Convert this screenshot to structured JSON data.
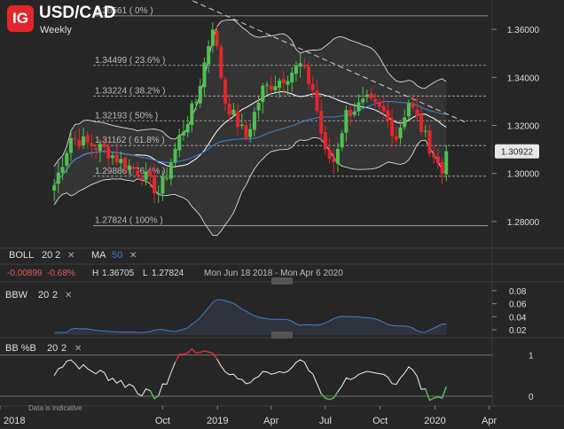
{
  "header": {
    "logo": "IG",
    "title": "USD/CAD",
    "subtitle": "Weekly"
  },
  "colors": {
    "bg": "#262626",
    "up": "#4fc14f",
    "down": "#e3262b",
    "boll": "#d9d9d9",
    "ma": "#3c7fc9",
    "band_fill": "#3a3a3a",
    "grid": "#3a3a3a"
  },
  "chart_data": {
    "type": "candlestick",
    "ylim": [
      1.27,
      1.37
    ],
    "yticks": [
      1.28,
      1.3,
      1.32,
      1.34,
      1.36
    ],
    "ytick_labels": [
      "1.28000",
      "1.30000",
      "1.32000",
      "1.34000",
      "1.36000"
    ],
    "last_price": {
      "value": 1.30922,
      "label": "1.30922"
    },
    "x_range": [
      "2018-04-02",
      "2020-04-06"
    ],
    "x_labels": [
      {
        "label": "2018",
        "date": "2018-01-01"
      },
      {
        "label": "Oct",
        "date": "2018-10-01"
      },
      {
        "label": "2019",
        "date": "2019-01-01"
      },
      {
        "label": "Apr",
        "date": "2019-04-01"
      },
      {
        "label": "Jul",
        "date": "2019-07-01"
      },
      {
        "label": "Oct",
        "date": "2019-10-01"
      },
      {
        "label": "2020",
        "date": "2020-01-01"
      },
      {
        "label": "Apr",
        "date": "2020-04-01"
      }
    ],
    "trendline": {
      "from": [
        "2018-12-24",
        1.369
      ],
      "to": [
        "2020-02-24",
        1.321
      ]
    },
    "fibonacci": [
      {
        "label": "1.36561 ( 0% )",
        "value": 1.36561
      },
      {
        "label": "1.34499 ( 23.6% )",
        "value": 1.34499
      },
      {
        "label": "1.33224 ( 38.2% )",
        "value": 1.33224
      },
      {
        "label": "1.32193 ( 50% )",
        "value": 1.32193
      },
      {
        "label": "1.31162 ( 61.8% )",
        "value": 1.31162
      },
      {
        "label": "1.29886 ( 76.4% )",
        "value": 1.29886
      },
      {
        "label": "1.27824 ( 100% )",
        "value": 1.27824
      }
    ],
    "close_anchors": [
      [
        "2018-04-02",
        1.295
      ],
      [
        "2018-04-30",
        1.315
      ],
      [
        "2018-06-25",
        1.31
      ],
      [
        "2018-07-23",
        1.305
      ],
      [
        "2018-08-27",
        1.3
      ],
      [
        "2018-09-24",
        1.292
      ],
      [
        "2018-10-08",
        1.3
      ],
      [
        "2018-10-29",
        1.315
      ],
      [
        "2018-11-26",
        1.33
      ],
      [
        "2018-12-24",
        1.362
      ],
      [
        "2019-01-14",
        1.33
      ],
      [
        "2019-02-18",
        1.315
      ],
      [
        "2019-03-18",
        1.335
      ],
      [
        "2019-04-22",
        1.34
      ],
      [
        "2019-05-20",
        1.345
      ],
      [
        "2019-06-10",
        1.335
      ],
      [
        "2019-07-01",
        1.308
      ],
      [
        "2019-07-15",
        1.305
      ],
      [
        "2019-08-05",
        1.325
      ],
      [
        "2019-09-09",
        1.33
      ],
      [
        "2019-10-07",
        1.325
      ],
      [
        "2019-10-28",
        1.315
      ],
      [
        "2019-11-18",
        1.33
      ],
      [
        "2019-12-16",
        1.315
      ],
      [
        "2020-01-13",
        1.3
      ],
      [
        "2020-01-20",
        1.3092
      ]
    ],
    "boll": {
      "period": 20,
      "std": 2,
      "label": "BOLL",
      "x_icon": "✕"
    },
    "ma": {
      "period": 50,
      "label": "MA"
    },
    "info": {
      "change": "-0.00899",
      "change_pct": "-0.68%",
      "high_label": "H",
      "high": "1.36705",
      "low_label": "L",
      "low": "1.27824",
      "range": "Mon Jun 18 2018 - Mon Apr 6 2020"
    },
    "bbw": {
      "label": "BBW",
      "period": 20,
      "std": 2,
      "yticks": [
        0.02,
        0.04,
        0.06,
        0.08
      ],
      "ytick_labels": [
        "0.02",
        "0.04",
        "0.06",
        "0.08"
      ],
      "ylim": [
        0.012,
        0.088
      ]
    },
    "bbpb": {
      "label": "BB %B",
      "period": 20,
      "std": 2,
      "yticks": [
        0,
        1
      ],
      "ytick_labels": [
        "0",
        "1"
      ],
      "ylim": [
        -0.15,
        1.25
      ]
    },
    "footnote": "Data is indicative"
  }
}
